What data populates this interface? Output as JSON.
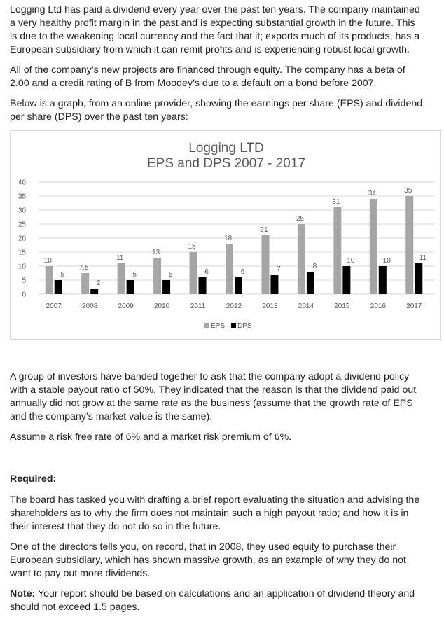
{
  "paragraphs_top": [
    {
      "lines": [
        "Logging Ltd has paid a dividend every year over the past ten years. The company maintained",
        "a very healthy profit margin in the past and is expecting substantial growth in the future. This",
        "is due to the weakening local currency and the fact that it; exports much of its products, has a",
        "European subsidiary from which it can remit profits and is experiencing robust local growth."
      ]
    },
    {
      "lines": [
        "All of the company’s new projects are financed through equity. The company has a beta of",
        "2.00 and a credit rating of B from Moodey’s due to a default on a bond before 2007."
      ]
    },
    {
      "lines": [
        "Below is a graph, from an online provider, showing the earnings per share (EPS) and dividend",
        "per share (DPS) over the past ten years:"
      ]
    }
  ],
  "chart_data": {
    "type": "bar",
    "title": "Logging LTD",
    "subtitle": "EPS and DPS 2007 - 2017",
    "categories": [
      "2007",
      "2008",
      "2009",
      "2010",
      "2011",
      "2012",
      "2013",
      "2014",
      "2015",
      "2016",
      "2017"
    ],
    "series": [
      {
        "name": "EPS",
        "values": [
          10,
          7.5,
          11,
          13,
          15,
          18,
          21,
          25,
          31,
          34,
          35
        ],
        "color": "#a6a6a6"
      },
      {
        "name": "DPS",
        "values": [
          5,
          2,
          5,
          5,
          6,
          6,
          7,
          8,
          10,
          10,
          11
        ],
        "color": "#000000"
      }
    ],
    "data_labels": {
      "EPS": [
        "10",
        "7.5",
        "11",
        "13",
        "15",
        "18",
        "21",
        "25",
        "31",
        "34",
        "35"
      ],
      "DPS": [
        "5",
        "2",
        "5",
        "5",
        "6",
        "6",
        "7",
        "8",
        "10",
        "10",
        "11"
      ]
    },
    "yticks": [
      "0",
      "5",
      "10",
      "15",
      "20",
      "25",
      "30",
      "35",
      "40"
    ],
    "ylim": [
      0,
      40
    ],
    "grid": true,
    "legend": "bottom-center"
  },
  "paragraphs_bottom": [
    {
      "lines": [
        "A group of investors have banded together to ask that the company adopt a dividend policy",
        "with a stable payout ratio of 50%. They indicated that the reason is that the dividend paid out",
        "annually did not grow at the same rate as the business (assume that the growth rate of EPS",
        "and the company’s market value is the same)."
      ]
    },
    {
      "lines": [
        "Assume a risk free rate of 6% and a market risk premium of 6%."
      ]
    }
  ],
  "required_heading": "Required:",
  "paragraphs_required": [
    {
      "lines": [
        "The board has tasked you with drafting a brief report evaluating the situation and advising the",
        "shareholders as to why the firm does not maintain such a high payout ratio; and how it is in",
        "their interest that they do not do so in the future."
      ]
    },
    {
      "lines": [
        "One of the directors tells you, on record, that in 2008, they used equity to purchase their",
        "European subsidiary, which has shown massive growth, as an example of why they do not",
        "want to pay out more dividends."
      ]
    }
  ],
  "note": {
    "label": "Note:",
    "lines": [
      " Your report should be based on calculations and an application of dividend theory and",
      "should not exceed 1.5 pages."
    ]
  }
}
